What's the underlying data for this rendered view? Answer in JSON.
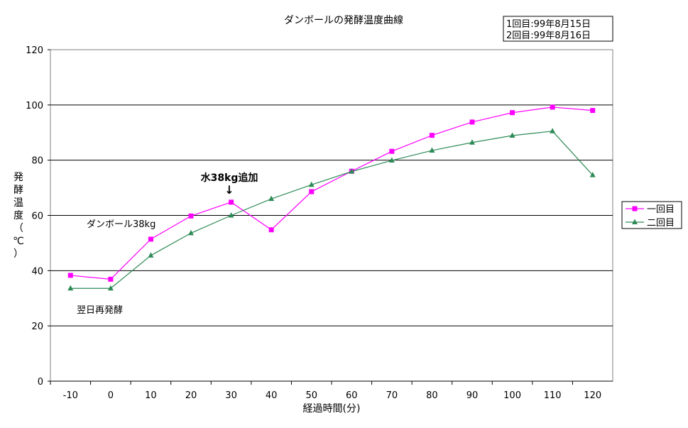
{
  "chart_data": {
    "type": "line",
    "title": "ダンボールの発酵温度曲線",
    "xlabel": "経過時間(分)",
    "ylabel_chars": [
      "発",
      "酵",
      "温",
      "度",
      "（",
      "℃",
      "）"
    ],
    "x": [
      -10,
      0,
      10,
      20,
      30,
      40,
      50,
      60,
      70,
      80,
      90,
      100,
      110,
      120
    ],
    "xticks": [
      "-10",
      "0",
      "10",
      "20",
      "30",
      "40",
      "50",
      "60",
      "70",
      "80",
      "90",
      "100",
      "110",
      "120"
    ],
    "yticks": [
      "0",
      "20",
      "40",
      "60",
      "80",
      "100",
      "120"
    ],
    "xlim": [
      -15,
      125
    ],
    "ylim": [
      0,
      120
    ],
    "grid": "horizontal",
    "legend_position": "right",
    "series": [
      {
        "name": "一回目",
        "color": "#ff00ff",
        "marker": "square",
        "values": [
          38.3,
          36.9,
          51.4,
          59.8,
          64.8,
          54.8,
          68.6,
          76.0,
          83.2,
          89.0,
          93.8,
          97.2,
          99.2,
          98.0
        ]
      },
      {
        "name": "二回目",
        "color": "#2e8b57",
        "marker": "triangle",
        "values": [
          33.6,
          33.6,
          45.5,
          53.6,
          60.0,
          66.0,
          71.1,
          75.9,
          79.9,
          83.5,
          86.4,
          88.9,
          90.5,
          74.6
        ]
      }
    ],
    "dates_box": [
      "1回目:99年8月15日",
      "2回目:99年8月16日"
    ],
    "annotations": {
      "water_label": "水38kg追加",
      "arrow": "↓",
      "cardboard_label": "ダンボール38kg",
      "next_day_label": "翌日再発酵"
    }
  }
}
